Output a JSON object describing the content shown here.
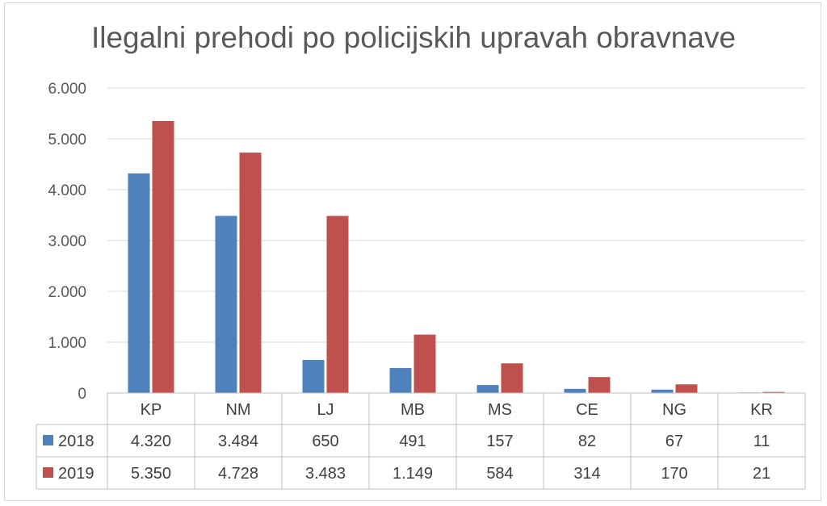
{
  "chart_data": {
    "type": "bar",
    "title": "Ilegalni prehodi po policijskih upravah obravnave",
    "categories": [
      "KP",
      "NM",
      "LJ",
      "MB",
      "MS",
      "CE",
      "NG",
      "KR"
    ],
    "series": [
      {
        "name": "2018",
        "color": "#4f81bd",
        "values": [
          4320,
          3484,
          650,
          491,
          157,
          82,
          67,
          11
        ],
        "labels": [
          "4.320",
          "3.484",
          "650",
          "491",
          "157",
          "82",
          "67",
          "11"
        ]
      },
      {
        "name": "2019",
        "color": "#c0504d",
        "values": [
          5350,
          4728,
          3483,
          1149,
          584,
          314,
          170,
          21
        ],
        "labels": [
          "5.350",
          "4.728",
          "3.483",
          "1.149",
          "584",
          "314",
          "170",
          "21"
        ]
      }
    ],
    "ylim": [
      0,
      6000
    ],
    "yticks": [
      0,
      1000,
      2000,
      3000,
      4000,
      5000,
      6000
    ],
    "ytick_labels": [
      "0",
      "1.000",
      "2.000",
      "3.000",
      "4.000",
      "5.000",
      "6.000"
    ],
    "grid": true,
    "legend": "data-table"
  }
}
